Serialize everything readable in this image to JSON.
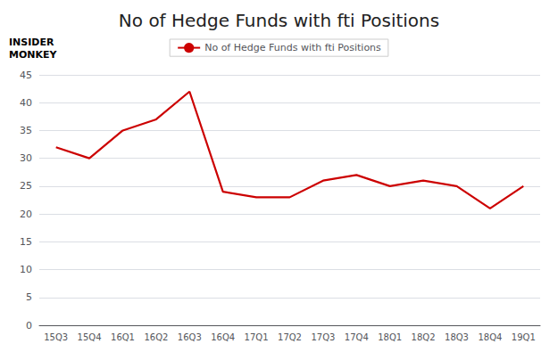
{
  "chart_data": {
    "type": "line",
    "title": "No of Hedge Funds with fti Positions",
    "annotation": "INSIDER\nMONKEY",
    "categories": [
      "15Q3",
      "15Q4",
      "16Q1",
      "16Q2",
      "16Q3",
      "16Q4",
      "17Q1",
      "17Q2",
      "17Q3",
      "17Q4",
      "18Q1",
      "18Q2",
      "18Q3",
      "18Q4",
      "19Q1"
    ],
    "series": [
      {
        "name": "No of Hedge Funds with fti Positions",
        "color": "#cc0000",
        "values": [
          32,
          30,
          35,
          37,
          42,
          24,
          23,
          23,
          26,
          27,
          25,
          26,
          25,
          21,
          25
        ]
      }
    ],
    "ylim": [
      0,
      45
    ],
    "yticks": [
      0,
      5,
      10,
      15,
      20,
      25,
      30,
      35,
      40,
      45
    ],
    "grid": true,
    "legend": "upper center"
  }
}
